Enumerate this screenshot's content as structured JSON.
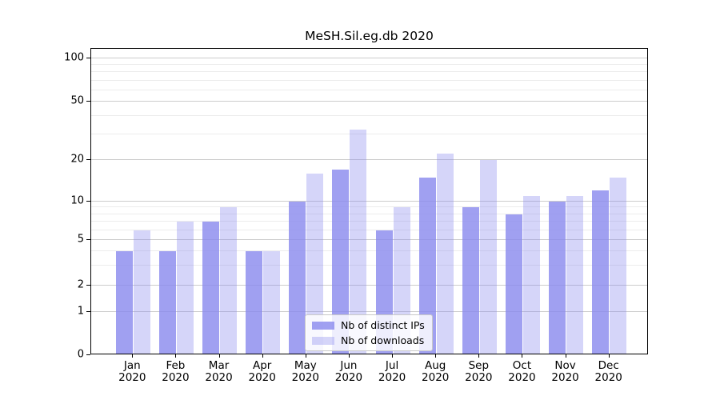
{
  "chart_data": {
    "type": "bar",
    "title": "MeSH.Sil.eg.db 2020",
    "categories": [
      "Jan 2020",
      "Feb 2020",
      "Mar 2020",
      "Apr 2020",
      "May 2020",
      "Jun 2020",
      "Jul 2020",
      "Aug 2020",
      "Sep 2020",
      "Oct 2020",
      "Nov 2020",
      "Dec 2020"
    ],
    "series": [
      {
        "name": "Nb of distinct IPs",
        "color": "rgba(136,136,238,0.8)",
        "values": [
          4,
          4,
          7,
          4,
          10,
          17,
          6,
          15,
          9,
          8,
          10,
          12
        ]
      },
      {
        "name": "Nb of downloads",
        "color": "rgba(136,136,238,0.35)",
        "values": [
          6,
          7,
          9,
          4,
          16,
          32,
          9,
          22,
          20,
          11,
          11,
          15
        ]
      }
    ],
    "xlabel": "",
    "ylabel": "",
    "grid": true,
    "legend_position": "lower center",
    "yaxis": {
      "scale": "log-like with 0 baseline",
      "ylim": [
        0,
        110
      ],
      "major_ticks": [
        0,
        1,
        2,
        5,
        10,
        20,
        50,
        100
      ],
      "minor_ticks": [
        3,
        4,
        6,
        7,
        8,
        9,
        30,
        40,
        60,
        70,
        80,
        90
      ],
      "tick_anchors": [
        {
          "value": 0,
          "y": 1.0
        },
        {
          "value": 1,
          "y": 0.8598
        },
        {
          "value": 2,
          "y": 0.7721
        },
        {
          "value": 5,
          "y": 0.6248
        },
        {
          "value": 10,
          "y": 0.4987
        },
        {
          "value": 20,
          "y": 0.3629
        },
        {
          "value": 50,
          "y": 0.1715
        },
        {
          "value": 100,
          "y": 0.0321
        }
      ]
    },
    "colors": {
      "major_grid": "#cccccc",
      "minor_grid": "#ececec",
      "spine": "#000000"
    }
  }
}
